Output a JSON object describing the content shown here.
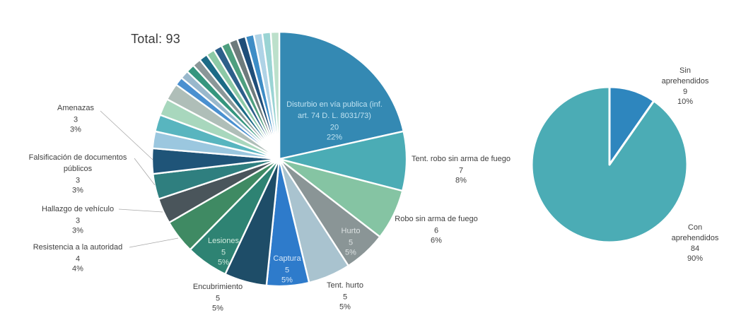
{
  "page": {
    "background": "#FFFFFF",
    "label_text_color": "#404040",
    "leader_line_color": "#A8A8A8"
  },
  "chart_data": [
    {
      "type": "pie",
      "title": "Total: 93",
      "total": 93,
      "legend": "none",
      "slices": [
        {
          "label": "Disturbio en vía publica (inf. art. 74 D. L. 8031/73)",
          "value": 20,
          "pct": "22%",
          "color": "#3489B3",
          "label_placement": "inside"
        },
        {
          "label": "Tent. robo sin arma de fuego",
          "value": 7,
          "pct": "8%",
          "color": "#4BACB5",
          "label_placement": "outside"
        },
        {
          "label": "Robo sin arma de fuego",
          "value": 6,
          "pct": "6%",
          "color": "#85C4A3",
          "label_placement": "outside"
        },
        {
          "label": "Hurto",
          "value": 5,
          "pct": "5%",
          "color": "#8A9596",
          "label_placement": "inside"
        },
        {
          "label": "Tent. hurto",
          "value": 5,
          "pct": "5%",
          "color": "#A9C3CF",
          "label_placement": "outside"
        },
        {
          "label": "Captura",
          "value": 5,
          "pct": "5%",
          "color": "#2E7BCB",
          "label_placement": "inside"
        },
        {
          "label": "Encubrimiento",
          "value": 5,
          "pct": "5%",
          "color": "#1E4D68",
          "label_placement": "outside"
        },
        {
          "label": "Lesiones",
          "value": 5,
          "pct": "5%",
          "color": "#2E8373",
          "label_placement": "inside"
        },
        {
          "label": "Resistencia a la autoridad",
          "value": 4,
          "pct": "4%",
          "color": "#3F8A63",
          "label_placement": "outside"
        },
        {
          "label": "Hallazgo de vehículo",
          "value": 3,
          "pct": "3%",
          "color": "#4A555B",
          "label_placement": "outside"
        },
        {
          "label": "Falsificación de documentos públicos",
          "value": 3,
          "pct": "3%",
          "color": "#2F7F7F",
          "label_placement": "outside"
        },
        {
          "label": "Amenazas",
          "value": 3,
          "pct": "3%",
          "color": "#1F5478",
          "label_placement": "outside"
        },
        {
          "label": "",
          "value": 2,
          "pct": "",
          "color": "#9BC7DF",
          "label_placement": "none"
        },
        {
          "label": "",
          "value": 2,
          "pct": "",
          "color": "#58B5BF",
          "label_placement": "none"
        },
        {
          "label": "",
          "value": 2,
          "pct": "",
          "color": "#A8D7BD",
          "label_placement": "none"
        },
        {
          "label": "",
          "value": 2,
          "pct": "",
          "color": "#AFBEB8",
          "label_placement": "none"
        },
        {
          "label": "",
          "value": 1,
          "pct": "",
          "color": "#4A90D0",
          "label_placement": "none"
        },
        {
          "label": "",
          "value": 1,
          "pct": "",
          "color": "#99B8CC",
          "label_placement": "none"
        },
        {
          "label": "",
          "value": 1,
          "pct": "",
          "color": "#35967E",
          "label_placement": "none"
        },
        {
          "label": "",
          "value": 1,
          "pct": "",
          "color": "#8A9798",
          "label_placement": "none"
        },
        {
          "label": "",
          "value": 1,
          "pct": "",
          "color": "#1C6B86",
          "label_placement": "none"
        },
        {
          "label": "",
          "value": 1,
          "pct": "",
          "color": "#8CC9A6",
          "label_placement": "none"
        },
        {
          "label": "",
          "value": 1,
          "pct": "",
          "color": "#2D5F8A",
          "label_placement": "none"
        },
        {
          "label": "",
          "value": 1,
          "pct": "",
          "color": "#4E9F7F",
          "label_placement": "none"
        },
        {
          "label": "",
          "value": 1,
          "pct": "",
          "color": "#6E7B7C",
          "label_placement": "none"
        },
        {
          "label": "",
          "value": 1,
          "pct": "",
          "color": "#1F4E79",
          "label_placement": "none"
        },
        {
          "label": "",
          "value": 1,
          "pct": "",
          "color": "#3E8DC6",
          "label_placement": "none"
        },
        {
          "label": "",
          "value": 1,
          "pct": "",
          "color": "#AFD3E6",
          "label_placement": "none"
        },
        {
          "label": "",
          "value": 1,
          "pct": "",
          "color": "#9AD4D4",
          "label_placement": "none"
        },
        {
          "label": "",
          "value": 1,
          "pct": "",
          "color": "#BCE0CB",
          "label_placement": "none"
        }
      ]
    },
    {
      "type": "pie",
      "title": "",
      "total": 93,
      "legend": "none",
      "slices": [
        {
          "label": "Sin aprehendidos",
          "value": 9,
          "pct": "10%",
          "color": "#2E86BE",
          "label_placement": "outside"
        },
        {
          "label": "Con aprehendidos",
          "value": 84,
          "pct": "90%",
          "color": "#4BACB5",
          "label_placement": "outside"
        }
      ]
    }
  ]
}
